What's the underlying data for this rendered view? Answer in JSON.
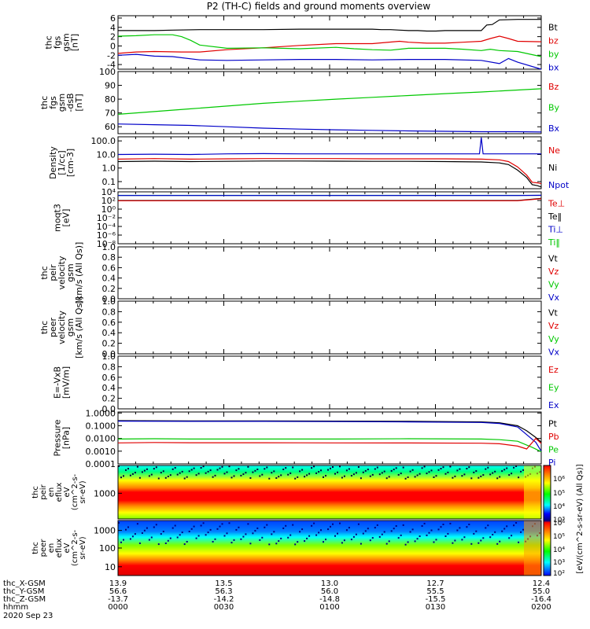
{
  "title": "P2 (TH-C) fields and ground moments overview",
  "colors": {
    "black": "#000000",
    "red": "#e00000",
    "green": "#00c800",
    "blue": "#0000c8",
    "teal": "#008080"
  },
  "chart_data": {
    "type": "line",
    "panels": [
      {
        "id": "fgs-gsm",
        "ylabel_lines": [
          "thc",
          "fgs",
          "gsm",
          "[nT]"
        ],
        "ylim": [
          -5,
          6.5
        ],
        "yticks": [
          6,
          4,
          2,
          0,
          -2,
          -4
        ],
        "ytick_labels": [
          "6",
          "4",
          "2",
          "0",
          "-2",
          "-4"
        ],
        "legend": [
          {
            "label": "Bt",
            "color": "black"
          },
          {
            "label": "bz",
            "color": "red"
          },
          {
            "label": "by",
            "color": "green"
          },
          {
            "label": "bx",
            "color": "blue"
          }
        ],
        "series": [
          {
            "color": "black",
            "x": [
              0,
              20,
              30,
              45,
              60,
              80,
              100,
              120,
              125,
              130,
              135,
              140,
              145,
              150,
              155,
              160,
              165,
              170,
              175,
              180,
              185,
              190,
              195,
              200,
              203,
              206,
              210,
              220,
              233
            ],
            "y": [
              3.3,
              3.3,
              3.4,
              3.5,
              3.5,
              3.5,
              3.6,
              3.6,
              3.6,
              3.6,
              3.6,
              3.6,
              3.5,
              3.5,
              3.4,
              3.3,
              3.3,
              3.2,
              3.2,
              3.3,
              3.3,
              3.3,
              3.3,
              3.3,
              4.5,
              4.6,
              5.6,
              5.7,
              5.7
            ]
          },
          {
            "color": "red",
            "x": [
              0,
              10,
              20,
              35,
              45,
              60,
              80,
              100,
              120,
              140,
              155,
              160,
              170,
              180,
              190,
              200,
              205,
              210,
              215,
              220,
              233
            ],
            "y": [
              -1.6,
              -1.3,
              -1.2,
              -1.3,
              -1.3,
              -0.8,
              -0.4,
              0.1,
              0.5,
              0.5,
              1.0,
              0.8,
              0.6,
              0.6,
              0.8,
              1.0,
              1.6,
              2.1,
              1.6,
              1.0,
              0.9
            ]
          },
          {
            "color": "green",
            "x": [
              0,
              10,
              20,
              30,
              35,
              40,
              45,
              60,
              80,
              100,
              120,
              130,
              140,
              150,
              160,
              170,
              180,
              190,
              200,
              205,
              210,
              220,
              233
            ],
            "y": [
              2.1,
              2.2,
              2.4,
              2.4,
              2.0,
              1.2,
              0.2,
              -0.5,
              -0.4,
              -0.6,
              -0.3,
              -0.6,
              -0.8,
              -0.9,
              -0.5,
              -0.5,
              -0.5,
              -0.7,
              -1.0,
              -0.7,
              -1.0,
              -1.2,
              -2.3
            ]
          },
          {
            "color": "blue",
            "x": [
              0,
              10,
              20,
              30,
              45,
              60,
              80,
              100,
              120,
              140,
              160,
              180,
              200,
              210,
              215,
              220,
              233
            ],
            "y": [
              -2.0,
              -1.8,
              -2.2,
              -2.3,
              -3.0,
              -3.1,
              -3.0,
              -2.9,
              -2.9,
              -3.0,
              -2.9,
              -2.9,
              -3.1,
              -3.8,
              -2.7,
              -3.5,
              -5.4
            ]
          }
        ]
      },
      {
        "id": "fgs-gse",
        "ylabel_lines": [
          "thc",
          "fgs",
          "gsm",
          "-dsB",
          "[nT]"
        ],
        "ylim": [
          55,
          100
        ],
        "yticks": [
          100,
          90,
          80,
          70,
          60
        ],
        "ytick_labels": [
          "100",
          "90",
          "80",
          "70",
          "60"
        ],
        "legend": [
          {
            "label": "Bz",
            "color": "red"
          },
          {
            "label": "By",
            "color": "green"
          },
          {
            "label": "Bx",
            "color": "blue"
          }
        ],
        "series": [
          {
            "color": "green",
            "x": [
              0,
              20,
              40,
              60,
              80,
              100,
              120,
              140,
              160,
              180,
              200,
              220,
              233
            ],
            "y": [
              69,
              71,
              73,
              75,
              77,
              78.5,
              80,
              81.3,
              82.6,
              84,
              85.2,
              86.6,
              87.5
            ]
          },
          {
            "color": "blue",
            "x": [
              0,
              20,
              40,
              60,
              80,
              100,
              120,
              140,
              160,
              180,
              200,
              220,
              233
            ],
            "y": [
              62,
              61.5,
              61,
              60,
              59,
              58.3,
              57.8,
              57.4,
              57,
              56.7,
              56.4,
              56.4,
              56.2
            ]
          }
        ]
      },
      {
        "id": "density",
        "ylabel_lines": [
          "Density",
          "[1/cc]",
          "[cm-3]"
        ],
        "log": true,
        "ylim": [
          0.03,
          200
        ],
        "yticks": [
          100,
          10,
          1,
          0.1
        ],
        "ytick_labels": [
          "100.0",
          "10.0",
          "1.0",
          "0.1"
        ],
        "legend": [
          {
            "label": "Ne",
            "color": "red"
          },
          {
            "label": "Ni",
            "color": "black"
          },
          {
            "label": "Npot",
            "color": "blue"
          }
        ],
        "series": [
          {
            "color": "blue",
            "x": [
              0,
              20,
              40,
              60,
              80,
              100,
              120,
              140,
              160,
              180,
              199,
              200,
              201,
              210,
              220,
              225,
              228,
              231,
              233
            ],
            "y": [
              10,
              10.5,
              10,
              11,
              11.5,
              11,
              11,
              11,
              11,
              11,
              11,
              180,
              11,
              11,
              11,
              11,
              11,
              11,
              11
            ]
          },
          {
            "color": "red",
            "x": [
              0,
              20,
              40,
              60,
              80,
              100,
              120,
              140,
              160,
              180,
              200,
              210,
              215,
              220,
              225,
              228,
              231,
              233
            ],
            "y": [
              4.5,
              5,
              4.5,
              4.8,
              5,
              5,
              5,
              4.8,
              4.8,
              4.8,
              4.5,
              4,
              3,
              1.2,
              0.3,
              0.09,
              0.08,
              0.07
            ]
          },
          {
            "color": "black",
            "x": [
              0,
              20,
              40,
              60,
              80,
              100,
              120,
              140,
              160,
              180,
              200,
              210,
              215,
              220,
              225,
              228,
              231,
              233
            ],
            "y": [
              3,
              3.2,
              3,
              3.1,
              3.3,
              3.3,
              3.2,
              3.1,
              3.1,
              3,
              2.8,
              2.4,
              1.8,
              0.7,
              0.2,
              0.06,
              0.05,
              0.04
            ]
          }
        ]
      },
      {
        "id": "temperature",
        "ylabel_lines": [
          "moqt3",
          "[eV]"
        ],
        "log": true,
        "ylim": [
          1e-08,
          10000
        ],
        "yticks": [
          10000,
          100,
          1,
          0.01,
          0.0001,
          1e-06,
          1e-08
        ],
        "ytick_labels": [
          "10⁴",
          "10²",
          "10⁰",
          "10⁻²",
          "10⁻⁴",
          "10⁻⁶",
          "10⁻⁸"
        ],
        "legend": [
          {
            "label": "Te⊥",
            "color": "red"
          },
          {
            "label": "Te‖",
            "color": "black"
          },
          {
            "label": "Ti⊥",
            "color": "blue"
          },
          {
            "label": "Ti‖",
            "color": "green"
          }
        ],
        "series": [
          {
            "color": "teal",
            "x": [
              0,
              233
            ],
            "y": [
              1500,
              1500
            ]
          },
          {
            "color": "blue",
            "x": [
              0,
              220,
              233
            ],
            "y": [
              1400,
              1400,
              1600
            ]
          },
          {
            "color": "black",
            "x": [
              0,
              220,
              233
            ],
            "y": [
              100,
              100,
              300
            ]
          },
          {
            "color": "red",
            "x": [
              0,
              220,
              233
            ],
            "y": [
              90,
              90,
              250
            ]
          }
        ]
      },
      {
        "id": "ion-velocity",
        "ylabel_lines": [
          "thc",
          "peir",
          "velocity",
          "gsm",
          "[km/s (All Qs)]"
        ],
        "ylim": [
          0,
          1
        ],
        "yticks": [
          1,
          0.8,
          0.6,
          0.4,
          0.2,
          0
        ],
        "ytick_labels": [
          "1.0",
          "0.8",
          "0.6",
          "0.4",
          "0.2",
          "0.0"
        ],
        "legend": [
          {
            "label": "Vt",
            "color": "black"
          },
          {
            "label": "Vz",
            "color": "red"
          },
          {
            "label": "Vy",
            "color": "green"
          },
          {
            "label": "Vx",
            "color": "blue"
          }
        ],
        "series": []
      },
      {
        "id": "electron-velocity",
        "ylabel_lines": [
          "thc",
          "peer",
          "velocity",
          "gsm",
          "[km/s (All Qs)]"
        ],
        "ylim": [
          0,
          1
        ],
        "yticks": [
          1,
          0.8,
          0.6,
          0.4,
          0.2,
          0
        ],
        "ytick_labels": [
          "1.0",
          "0.8",
          "0.6",
          "0.4",
          "0.2",
          "0.0"
        ],
        "legend": [
          {
            "label": "Vt",
            "color": "black"
          },
          {
            "label": "Vz",
            "color": "red"
          },
          {
            "label": "Vy",
            "color": "green"
          },
          {
            "label": "Vx",
            "color": "blue"
          }
        ],
        "series": []
      },
      {
        "id": "efield",
        "ylabel_lines": [
          "E=-VxB",
          "[mV/m]"
        ],
        "ylim": [
          0,
          1
        ],
        "yticks": [
          1,
          0.8,
          0.6,
          0.4,
          0.2,
          0
        ],
        "ytick_labels": [
          "1.0",
          "0.8",
          "0.6",
          "0.4",
          "0.2",
          "0.0"
        ],
        "legend": [
          {
            "label": "Ez",
            "color": "red"
          },
          {
            "label": "Ey",
            "color": "green"
          },
          {
            "label": "Ex",
            "color": "blue"
          }
        ],
        "series": []
      },
      {
        "id": "pressure",
        "ylabel_lines": [
          "Pressure",
          "[nPa]"
        ],
        "log": true,
        "ylim": [
          0.0001,
          1.2
        ],
        "yticks": [
          1,
          0.1,
          0.01,
          0.001,
          0.0001
        ],
        "ytick_labels": [
          "1.0000",
          "0.1000",
          "0.0100",
          "0.0010",
          "0.0001"
        ],
        "legend": [
          {
            "label": "Pt",
            "color": "black"
          },
          {
            "label": "Pb",
            "color": "red"
          },
          {
            "label": "Pe",
            "color": "green"
          },
          {
            "label": "Pi",
            "color": "blue"
          }
        ],
        "series": [
          {
            "color": "black",
            "x": [
              0,
              40,
              80,
              120,
              160,
              200,
              210,
              220,
              225,
              230,
              233
            ],
            "y": [
              0.25,
              0.24,
              0.24,
              0.23,
              0.22,
              0.2,
              0.17,
              0.1,
              0.04,
              0.012,
              0.005
            ]
          },
          {
            "color": "blue",
            "x": [
              0,
              40,
              80,
              120,
              160,
              200,
              210,
              220,
              225,
              230,
              233
            ],
            "y": [
              0.23,
              0.22,
              0.22,
              0.21,
              0.2,
              0.18,
              0.15,
              0.08,
              0.02,
              0.005,
              0.001
            ]
          },
          {
            "color": "green",
            "x": [
              0,
              20,
              40,
              80,
              120,
              160,
              200,
              210,
              220,
              225,
              228,
              233
            ],
            "y": [
              0.009,
              0.0095,
              0.009,
              0.009,
              0.009,
              0.0095,
              0.009,
              0.008,
              0.006,
              0.003,
              0.002,
              0.0009
            ]
          },
          {
            "color": "red",
            "x": [
              0,
              20,
              40,
              80,
              120,
              160,
              200,
              210,
              220,
              225,
              230,
              233
            ],
            "y": [
              0.0045,
              0.0048,
              0.0046,
              0.0046,
              0.0045,
              0.0044,
              0.0042,
              0.0038,
              0.0025,
              0.0015,
              0.01,
              0.004
            ]
          }
        ]
      }
    ],
    "spectrograms": [
      {
        "id": "ion-eflux",
        "ylabel_lines": [
          "thc",
          "peir",
          "en",
          "eflux",
          "eV",
          "(cm^2-s-",
          "sr-eV)"
        ],
        "ytick_labels": [
          "1000"
        ]
      },
      {
        "id": "electron-eflux",
        "ylabel_lines": [
          "thc",
          "peer",
          "en",
          "eflux",
          "eV",
          "(cm^2-s-",
          "sr-eV)"
        ],
        "ytick_labels": [
          "1000",
          "100",
          "10"
        ]
      }
    ],
    "colorbar": {
      "tick_labels": [
        "10⁶",
        "10⁵",
        "10⁴",
        "10³",
        "10⁶",
        "10⁵",
        "10⁴",
        "10³",
        "10²"
      ],
      "label": "[eV/(cm^2-s-sr-eV) (All Qs)]"
    },
    "x_axis": {
      "range_minutes": [
        0,
        120
      ],
      "row_labels": [
        "thc_X-GSM",
        "thc_Y-GSM",
        "thc_Z-GSM",
        "hhmm",
        "2020 Sep 23"
      ],
      "ticks": [
        {
          "minute": 0,
          "x_gsm": "13.9",
          "y_gsm": "56.6",
          "z_gsm": "-13.7",
          "hhmm": "0000"
        },
        {
          "minute": 30,
          "x_gsm": "13.5",
          "y_gsm": "56.3",
          "z_gsm": "-14.2",
          "hhmm": "0030"
        },
        {
          "minute": 60,
          "x_gsm": "13.0",
          "y_gsm": "56.0",
          "z_gsm": "-14.8",
          "hhmm": "0100"
        },
        {
          "minute": 90,
          "x_gsm": "12.7",
          "y_gsm": "55.5",
          "z_gsm": "-15.5",
          "hhmm": "0130"
        },
        {
          "minute": 120,
          "x_gsm": "12.4",
          "y_gsm": "55.0",
          "z_gsm": "-16.4",
          "hhmm": "0200"
        }
      ]
    }
  }
}
